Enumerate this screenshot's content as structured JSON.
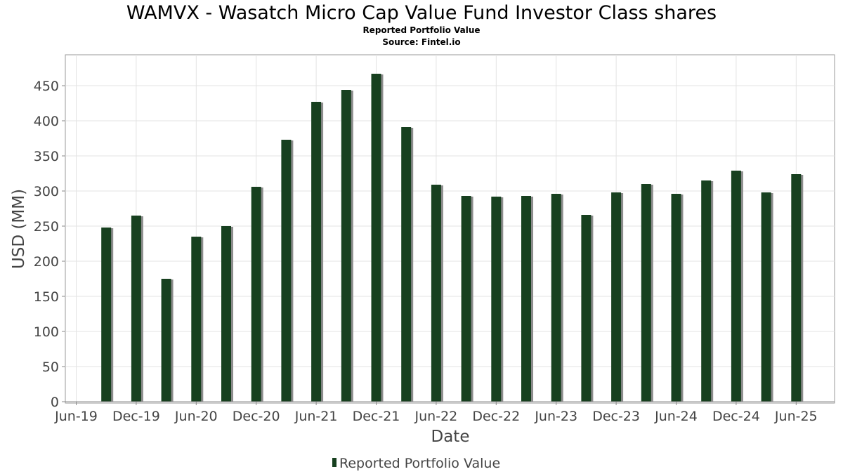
{
  "chart_data": {
    "type": "bar",
    "title": "WAMVX - Wasatch Micro Cap Value Fund Investor Class shares",
    "subtitle": "Reported Portfolio Value",
    "source": "Source: Fintel.io",
    "xlabel": "Date",
    "ylabel": "USD (MM)",
    "ylim": [
      0,
      490
    ],
    "yticks": [
      0,
      50,
      100,
      150,
      200,
      250,
      300,
      350,
      400,
      450
    ],
    "xticks": [
      "Jun-19",
      "Dec-19",
      "Jun-20",
      "Dec-20",
      "Jun-21",
      "Dec-21",
      "Jun-22",
      "Dec-22",
      "Jun-23",
      "Dec-23",
      "Jun-24",
      "Dec-24",
      "Jun-25"
    ],
    "grid": true,
    "legend_position": "bottom",
    "series": [
      {
        "name": "Reported Portfolio Value",
        "color": "#17401f",
        "values": [
          248,
          265,
          175,
          235,
          250,
          306,
          373,
          427,
          444,
          467,
          391,
          309,
          293,
          292,
          293,
          296,
          266,
          298,
          310,
          296,
          315,
          329,
          298,
          324
        ]
      }
    ]
  }
}
